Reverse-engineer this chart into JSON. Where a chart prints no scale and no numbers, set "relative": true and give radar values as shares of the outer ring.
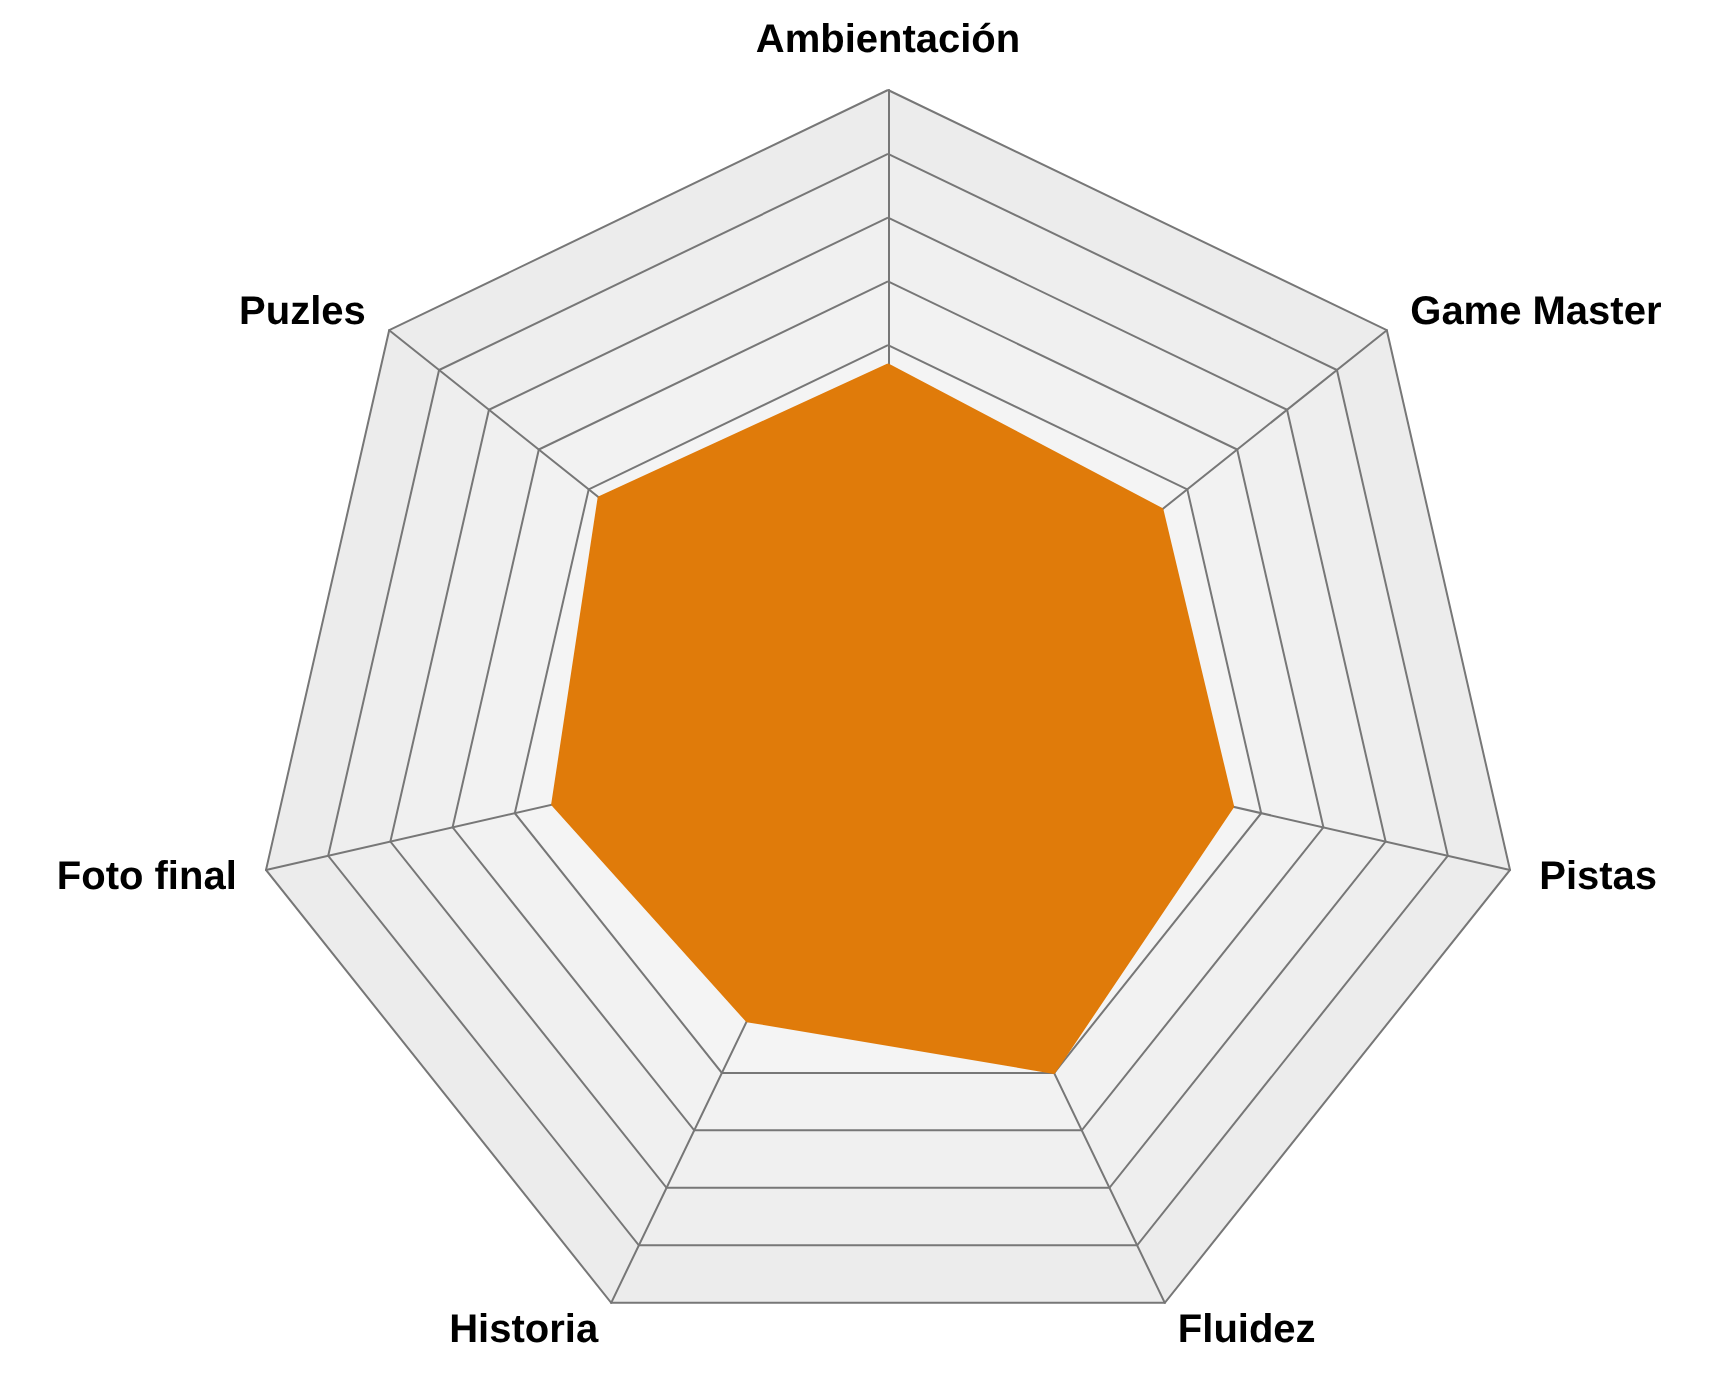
{
  "chart_data": {
    "type": "radar",
    "relative": true,
    "categories": [
      "Ambientación",
      "Game Master",
      "Pistas",
      "Fluidez",
      "Historia",
      "Foto final",
      "Puzles"
    ],
    "series": [
      {
        "color": "#e07b0a",
        "values": [
          0.57,
          0.55,
          0.555,
          0.6,
          0.51,
          0.54,
          0.58
        ]
      }
    ]
  }
}
